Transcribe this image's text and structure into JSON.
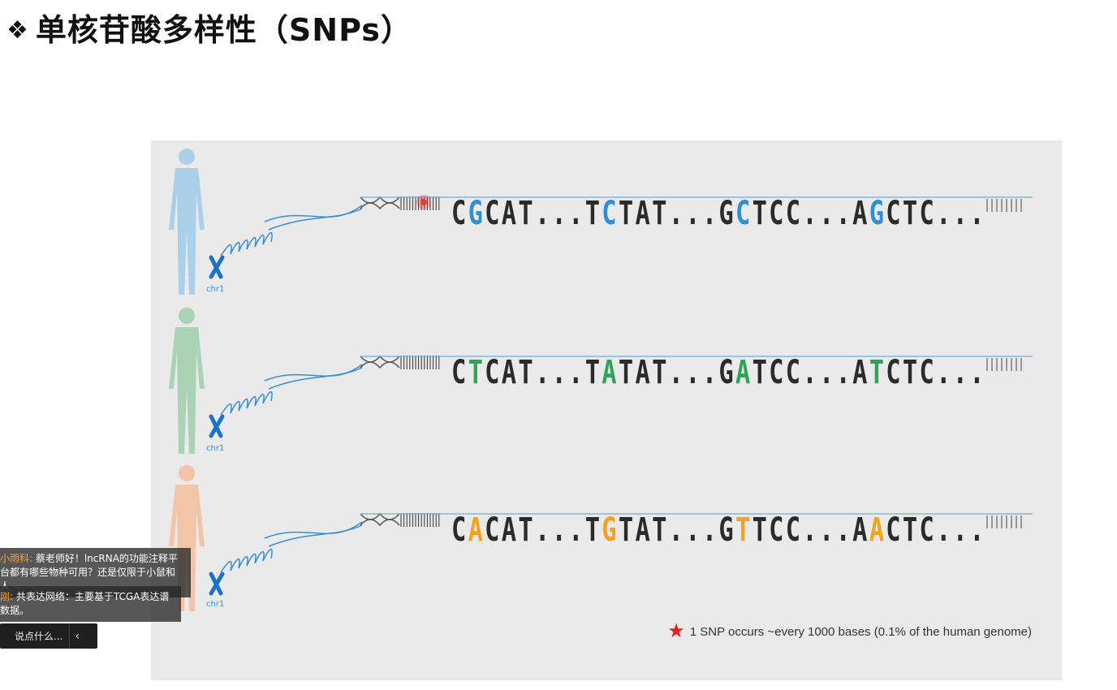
{
  "slide": {
    "bullet": "❖",
    "title": "单核苷酸多样性（SNPs）"
  },
  "figure": {
    "chr_label": "chr1",
    "rows": [
      {
        "person_color": "#a9cfe9",
        "sequence": [
          {
            "t": "C",
            "c": "#2b2b2b"
          },
          {
            "t": "G",
            "c": "#2e8ed6"
          },
          {
            "t": "C",
            "c": "#2b2b2b"
          },
          {
            "t": "A",
            "c": "#2b2b2b"
          },
          {
            "t": "T",
            "c": "#2b2b2b"
          },
          {
            "t": "...",
            "c": "#2b2b2b"
          },
          {
            "t": "T",
            "c": "#2b2b2b"
          },
          {
            "t": "C",
            "c": "#2e8ed6"
          },
          {
            "t": "T",
            "c": "#2b2b2b"
          },
          {
            "t": "A",
            "c": "#2b2b2b"
          },
          {
            "t": "T",
            "c": "#2b2b2b"
          },
          {
            "t": "...",
            "c": "#2b2b2b"
          },
          {
            "t": "G",
            "c": "#2b2b2b"
          },
          {
            "t": "C",
            "c": "#2e8ed6"
          },
          {
            "t": "T",
            "c": "#2b2b2b"
          },
          {
            "t": "C",
            "c": "#2b2b2b"
          },
          {
            "t": "C",
            "c": "#2b2b2b"
          },
          {
            "t": "...",
            "c": "#2b2b2b"
          },
          {
            "t": "A",
            "c": "#2b2b2b"
          },
          {
            "t": "G",
            "c": "#2e8ed6"
          },
          {
            "t": "C",
            "c": "#2b2b2b"
          },
          {
            "t": "T",
            "c": "#2b2b2b"
          },
          {
            "t": "C",
            "c": "#2b2b2b"
          },
          {
            "t": "...",
            "c": "#2b2b2b"
          }
        ]
      },
      {
        "person_color": "#a9d3b4",
        "sequence": [
          {
            "t": "C",
            "c": "#2b2b2b"
          },
          {
            "t": "T",
            "c": "#2fa35a"
          },
          {
            "t": "C",
            "c": "#2b2b2b"
          },
          {
            "t": "A",
            "c": "#2b2b2b"
          },
          {
            "t": "T",
            "c": "#2b2b2b"
          },
          {
            "t": "...",
            "c": "#2b2b2b"
          },
          {
            "t": "T",
            "c": "#2b2b2b"
          },
          {
            "t": "A",
            "c": "#2fa35a"
          },
          {
            "t": "T",
            "c": "#2b2b2b"
          },
          {
            "t": "A",
            "c": "#2b2b2b"
          },
          {
            "t": "T",
            "c": "#2b2b2b"
          },
          {
            "t": "...",
            "c": "#2b2b2b"
          },
          {
            "t": "G",
            "c": "#2b2b2b"
          },
          {
            "t": "A",
            "c": "#2fa35a"
          },
          {
            "t": "T",
            "c": "#2b2b2b"
          },
          {
            "t": "C",
            "c": "#2b2b2b"
          },
          {
            "t": "C",
            "c": "#2b2b2b"
          },
          {
            "t": "...",
            "c": "#2b2b2b"
          },
          {
            "t": "A",
            "c": "#2b2b2b"
          },
          {
            "t": "T",
            "c": "#2fa35a"
          },
          {
            "t": "C",
            "c": "#2b2b2b"
          },
          {
            "t": "T",
            "c": "#2b2b2b"
          },
          {
            "t": "C",
            "c": "#2b2b2b"
          },
          {
            "t": "...",
            "c": "#2b2b2b"
          }
        ]
      },
      {
        "person_color": "#f2c4a8",
        "sequence": [
          {
            "t": "C",
            "c": "#2b2b2b"
          },
          {
            "t": "A",
            "c": "#f2a31e"
          },
          {
            "t": "C",
            "c": "#2b2b2b"
          },
          {
            "t": "A",
            "c": "#2b2b2b"
          },
          {
            "t": "T",
            "c": "#2b2b2b"
          },
          {
            "t": "...",
            "c": "#2b2b2b"
          },
          {
            "t": "T",
            "c": "#2b2b2b"
          },
          {
            "t": "G",
            "c": "#f2a31e"
          },
          {
            "t": "T",
            "c": "#2b2b2b"
          },
          {
            "t": "A",
            "c": "#2b2b2b"
          },
          {
            "t": "T",
            "c": "#2b2b2b"
          },
          {
            "t": "...",
            "c": "#2b2b2b"
          },
          {
            "t": "G",
            "c": "#2b2b2b"
          },
          {
            "t": "T",
            "c": "#f2a31e"
          },
          {
            "t": "T",
            "c": "#2b2b2b"
          },
          {
            "t": "C",
            "c": "#2b2b2b"
          },
          {
            "t": "C",
            "c": "#2b2b2b"
          },
          {
            "t": "...",
            "c": "#2b2b2b"
          },
          {
            "t": "A",
            "c": "#2b2b2b"
          },
          {
            "t": "A",
            "c": "#f2a31e"
          },
          {
            "t": "C",
            "c": "#2b2b2b"
          },
          {
            "t": "T",
            "c": "#2b2b2b"
          },
          {
            "t": "C",
            "c": "#2b2b2b"
          },
          {
            "t": "...",
            "c": "#2b2b2b"
          }
        ]
      }
    ],
    "footnote": "1 SNP occurs ~every 1000 bases (0.1% of the human genome)",
    "star_color": "#e0231a"
  },
  "chat": {
    "messages": [
      {
        "user": "小雨科:",
        "text1": " 蔡老师好！lncRNA的功能注释平",
        "text2": "台都有哪些物种可用？还是仅限于小鼠和人"
      },
      {
        "user": "刚:",
        "text1": " 共表达网络：主要基于TCGA表达谱",
        "text2": "数据。"
      }
    ],
    "input_placeholder": "说点什么...",
    "collapse_glyph": "‹"
  }
}
